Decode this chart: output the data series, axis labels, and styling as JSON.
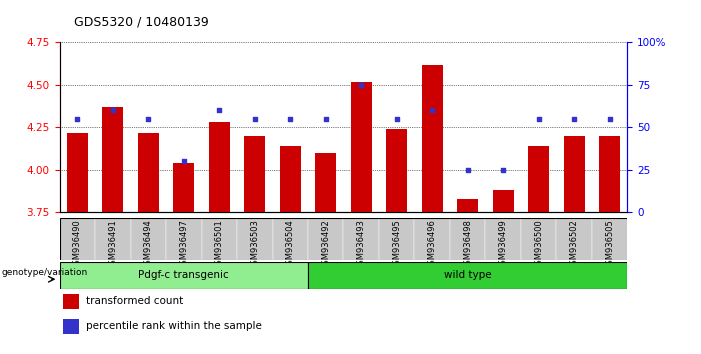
{
  "title": "GDS5320 / 10480139",
  "samples": [
    "GSM936490",
    "GSM936491",
    "GSM936494",
    "GSM936497",
    "GSM936501",
    "GSM936503",
    "GSM936504",
    "GSM936492",
    "GSM936493",
    "GSM936495",
    "GSM936496",
    "GSM936498",
    "GSM936499",
    "GSM936500",
    "GSM936502",
    "GSM936505"
  ],
  "transformed_count": [
    4.22,
    4.37,
    4.22,
    4.04,
    4.28,
    4.2,
    4.14,
    4.1,
    4.52,
    4.24,
    4.62,
    3.83,
    3.88,
    4.14,
    4.2,
    4.2
  ],
  "percentile_rank": [
    55,
    60,
    55,
    30,
    60,
    55,
    55,
    55,
    75,
    55,
    60,
    25,
    25,
    55,
    55,
    55
  ],
  "group1_label": "Pdgf-c transgenic",
  "group1_count": 7,
  "group2_label": "wild type",
  "group2_count": 9,
  "genotype_label": "genotype/variation",
  "ymin": 3.75,
  "ymax": 4.75,
  "y2min": 0,
  "y2max": 100,
  "yticks": [
    3.75,
    4.0,
    4.25,
    4.5,
    4.75
  ],
  "y2ticks": [
    0,
    25,
    50,
    75,
    100
  ],
  "bar_color": "#cc0000",
  "dot_color": "#3333cc",
  "legend_transformed": "transformed count",
  "legend_percentile": "percentile rank within the sample",
  "group1_color": "#90EE90",
  "group2_color": "#32CD32",
  "tick_label_bg": "#c8c8c8"
}
